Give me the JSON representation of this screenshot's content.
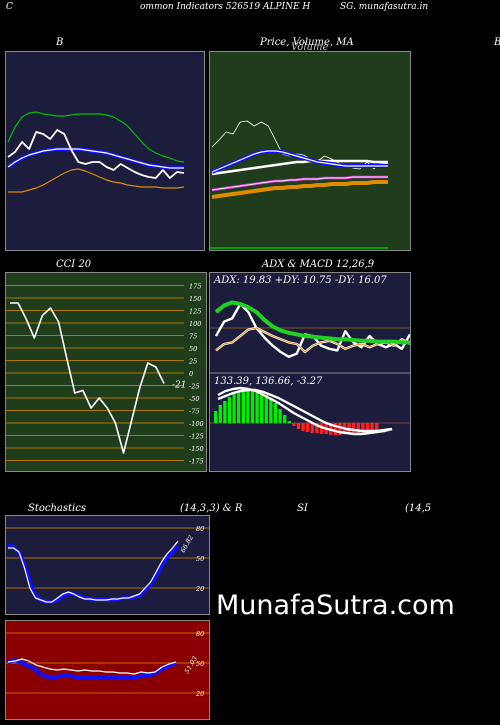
{
  "header": {
    "left_label": "C",
    "title": "ommon  Indicators 526519 ALPINE H",
    "site": "SG. munafasutra.in"
  },
  "watermark": "MunafaSutra.com",
  "colors": {
    "navy_bg": "#1c1c3c",
    "green_bg": "#1f3d1a",
    "red_bg": "#8a0000",
    "blue": "#1010ff",
    "green_line": "#00c000",
    "orange": "#e08a00"
  },
  "charts": {
    "bb": {
      "title": "B",
      "right_edge": "B"
    },
    "price": {
      "title": "Price,  Volume, MA",
      "overlay": "Volume"
    },
    "cci": {
      "title": "CCI 20",
      "ticks": [
        "175",
        "150",
        "125",
        "100",
        "75",
        "50",
        "25",
        "0",
        "-25",
        "-50",
        "-75",
        "-100",
        "-125",
        "-150",
        "-175"
      ],
      "last_value": "-21"
    },
    "adx": {
      "title": "ADX  & MACD 12,26,9",
      "readout": "ADX: 19.83 +DY: 10.75 -DY: 16.07",
      "macd_readout": "133.39,  136.66,  -3.27"
    },
    "stoch": {
      "title_left": "Stochastics",
      "title_mid": "(14,3,3) & R",
      "ticks": [
        "80",
        "50",
        "20"
      ],
      "last_label": "66.82"
    },
    "rsi": {
      "title_mid": "SI",
      "title_right": "(14,5",
      "ticks": [
        "80",
        "50",
        "20"
      ],
      "last_label": "51.03"
    }
  },
  "chart_data": [
    {
      "type": "line",
      "title": "B",
      "series": [
        {
          "values": [
            95,
            100,
            110,
            103,
            120,
            118,
            113,
            122,
            118,
            102,
            90,
            88,
            90,
            90,
            85,
            82,
            88,
            84,
            80,
            77,
            75,
            74,
            82,
            74,
            80,
            79
          ]
        },
        {
          "values": [
            110,
            125,
            135,
            139,
            140,
            138,
            137,
            136,
            136,
            137,
            138,
            138,
            138,
            138,
            137,
            135,
            131,
            126,
            118,
            110,
            103,
            99,
            96,
            94,
            91,
            90
          ]
        },
        {
          "values": [
            85,
            90,
            94,
            97,
            99,
            101,
            102,
            103,
            103,
            103,
            103,
            102,
            101,
            100,
            99,
            97,
            95,
            93,
            91,
            89,
            87,
            86,
            85,
            84,
            84,
            84
          ]
        },
        {
          "values": [
            60,
            60,
            60,
            62,
            64,
            67,
            71,
            75,
            79,
            82,
            83,
            81,
            78,
            75,
            72,
            70,
            69,
            67,
            66,
            65,
            65,
            65,
            64,
            64,
            64,
            65
          ]
        }
      ]
    },
    {
      "type": "line",
      "title": "Price,  Volume, MA",
      "series": [
        {
          "values": [
            105,
            112,
            120,
            118,
            130,
            131,
            126,
            130,
            126,
            112,
            98,
            96,
            98,
            97,
            93,
            91,
            96,
            93,
            89,
            86,
            84,
            83,
            90,
            83,
            89,
            88
          ]
        },
        {
          "values": [
            80,
            83,
            86,
            89,
            92,
            95,
            98,
            100,
            101,
            101,
            100,
            98,
            96,
            94,
            92,
            90,
            89,
            88,
            87,
            86,
            86,
            86,
            86,
            86,
            86,
            86
          ]
        },
        {
          "values": [
            78,
            79,
            80,
            81,
            82,
            83,
            84,
            85,
            86,
            87,
            88,
            89,
            90,
            90,
            91,
            91,
            91,
            91,
            91,
            91,
            91,
            91,
            91,
            90,
            90,
            90
          ]
        },
        {
          "values": [
            62,
            63,
            64,
            65,
            66,
            67,
            68,
            69,
            70,
            71,
            71,
            72,
            72,
            73,
            73,
            73,
            74,
            74,
            74,
            74,
            75,
            75,
            75,
            75,
            75,
            75
          ]
        },
        {
          "values": [
            55,
            56,
            57,
            58,
            59,
            60,
            61,
            62,
            63,
            64,
            64,
            65,
            65,
            66,
            66,
            67,
            67,
            68,
            68,
            68,
            69,
            69,
            69,
            70,
            70,
            70
          ]
        }
      ]
    },
    {
      "type": "line",
      "title": "CCI 20",
      "ylim": [
        -175,
        175
      ],
      "series": [
        {
          "values": [
            140,
            140,
            108,
            70,
            115,
            130,
            102,
            30,
            -40,
            -35,
            -70,
            -50,
            -70,
            -100,
            -160,
            -95,
            -30,
            20,
            12,
            -21
          ]
        }
      ]
    },
    {
      "type": "line",
      "title": "ADX  & MACD 12,26,9",
      "series": [
        {
          "values": [
            70,
            78,
            82,
            80,
            76,
            70,
            60,
            52,
            47,
            44,
            42,
            40,
            39,
            38,
            37,
            36,
            36,
            35,
            34,
            34,
            33,
            33,
            33,
            32,
            32
          ]
        },
        {
          "values": [
            40,
            58,
            62,
            80,
            70,
            50,
            38,
            28,
            20,
            14,
            18,
            42,
            40,
            28,
            24,
            22,
            46,
            32,
            26,
            40,
            30,
            26,
            30,
            24,
            42
          ]
        },
        {
          "values": [
            22,
            30,
            32,
            40,
            48,
            50,
            45,
            40,
            36,
            32,
            30,
            20,
            28,
            32,
            34,
            30,
            24,
            28,
            30,
            26,
            30,
            32,
            28,
            36,
            30
          ]
        }
      ]
    },
    {
      "type": "bar",
      "title": "",
      "values": [
        12,
        18,
        22,
        26,
        30,
        32,
        34,
        33,
        32,
        31,
        30,
        28,
        25,
        20,
        14,
        8,
        2,
        -3,
        -6,
        -8,
        -9,
        -10,
        -10,
        -11,
        -11,
        -12,
        -12,
        -12,
        -11,
        -11,
        -10,
        -10,
        -9,
        -9,
        -8,
        -8
      ]
    },
    {
      "type": "line",
      "title": "Stochastics (14,3,3) & R",
      "ylim": [
        0,
        100
      ],
      "series": [
        {
          "values": [
            60,
            60,
            56,
            40,
            20,
            10,
            8,
            6,
            6,
            10,
            14,
            16,
            14,
            11,
            9,
            9,
            8,
            8,
            8,
            9,
            9,
            10,
            10,
            12,
            14,
            20,
            26,
            36,
            46,
            54,
            60,
            67
          ]
        },
        {
          "values": [
            63,
            61,
            55,
            43,
            26,
            12,
            8,
            6,
            6,
            8,
            12,
            14,
            14,
            12,
            10,
            9,
            8,
            8,
            8,
            8,
            9,
            10,
            10,
            11,
            13,
            18,
            24,
            32,
            42,
            50,
            56,
            62
          ]
        }
      ]
    },
    {
      "type": "line",
      "title": "SI (14,5",
      "ylim": [
        0,
        100
      ],
      "series": [
        {
          "values": [
            51,
            52,
            54,
            52,
            48,
            46,
            44,
            43,
            44,
            43,
            42,
            43,
            42,
            42,
            41,
            41,
            40,
            40,
            39,
            41,
            40,
            41,
            46,
            49,
            51
          ]
        },
        {
          "values": [
            51,
            53,
            50,
            47,
            43,
            37,
            36,
            36,
            38,
            37,
            35,
            36,
            35,
            36,
            36,
            35,
            35,
            35,
            35,
            37,
            37,
            40,
            44,
            47,
            50
          ]
        }
      ]
    }
  ]
}
